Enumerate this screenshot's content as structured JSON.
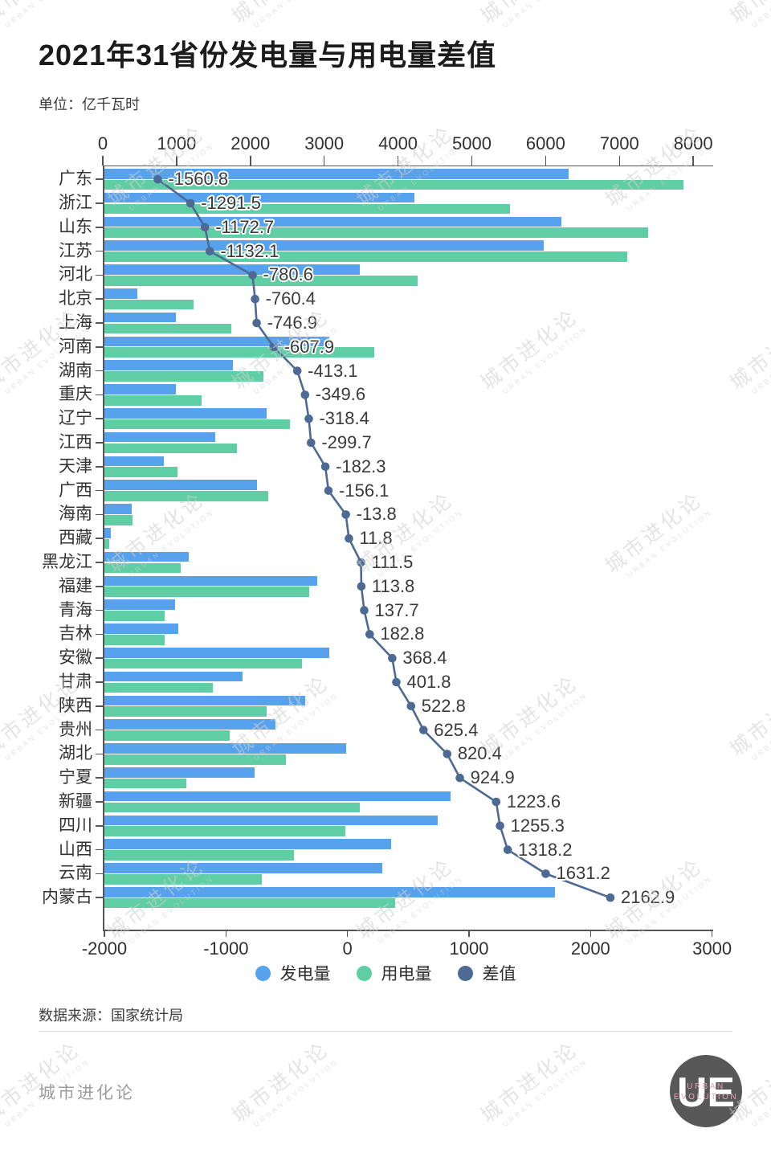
{
  "header": {
    "title": "2021年31省份发电量与用电量差值",
    "subtitle": "单位：亿千瓦时"
  },
  "watermark": {
    "line1": "城市进化论",
    "line2": "URBAN EVOLUTION"
  },
  "chart_data": {
    "type": "bar",
    "orientation": "horizontal",
    "title": "2021年31省份发电量与用电量差值",
    "unit": "亿千瓦时",
    "top_axis": {
      "min": 0,
      "max": 8000,
      "step": 1000,
      "tick_labels": [
        "0",
        "1000",
        "2000",
        "3000",
        "4000",
        "5000",
        "6000",
        "7000",
        "8000"
      ]
    },
    "bottom_axis": {
      "min": -2000,
      "max": 3000,
      "step": 1000,
      "tick_labels": [
        "-2000",
        "-1000",
        "0",
        "1000",
        "2000",
        "3000"
      ]
    },
    "series": [
      {
        "name": "发电量",
        "type": "bar",
        "color": "#56A2EC"
      },
      {
        "name": "用电量",
        "type": "bar",
        "color": "#5FCEA4"
      },
      {
        "name": "差值",
        "type": "line",
        "color": "#4D6A94"
      }
    ],
    "categories": [
      "广东",
      "浙江",
      "山东",
      "江苏",
      "河北",
      "北京",
      "上海",
      "河南",
      "湖南",
      "重庆",
      "辽宁",
      "江西",
      "天津",
      "广西",
      "海南",
      "西藏",
      "黑龙江",
      "福建",
      "青海",
      "吉林",
      "安徽",
      "甘肃",
      "陕西",
      "贵州",
      "湖北",
      "宁夏",
      "新疆",
      "四川",
      "山西",
      "云南",
      "内蒙古"
    ],
    "generation": [
      6306.0,
      4222.5,
      6211.1,
      5969.1,
      3483.2,
      472.1,
      992.1,
      3065.0,
      1764.4,
      990.2,
      2221.1,
      1520.7,
      825.7,
      2086.2,
      390.2,
      103.9,
      1162.6,
      2909.1,
      979.5,
      1017.9,
      3064.3,
      1896.0,
      2744.9,
      2340.0,
      3300.0,
      2060.0,
      4710.0,
      4541.0,
      3909.3,
      3784.9,
      6121.3
    ],
    "consumption": [
      7866.8,
      5514.0,
      7383.8,
      7101.2,
      4263.8,
      1232.5,
      1739.0,
      3672.9,
      2177.5,
      1339.8,
      2539.5,
      1820.4,
      1008.0,
      2242.3,
      404.0,
      92.1,
      1051.1,
      2795.3,
      841.8,
      835.1,
      2695.9,
      1494.2,
      2222.1,
      1714.6,
      2479.6,
      1135.1,
      3486.4,
      3285.7,
      2591.1,
      2153.7,
      3958.4
    ],
    "diff": [
      -1560.8,
      -1291.5,
      -1172.7,
      -1132.1,
      -780.6,
      -760.4,
      -746.9,
      -607.9,
      -413.1,
      -349.6,
      -318.4,
      -299.7,
      -182.3,
      -156.1,
      -13.8,
      11.8,
      111.5,
      113.8,
      137.7,
      182.8,
      368.4,
      401.8,
      522.8,
      625.4,
      820.4,
      924.9,
      1223.6,
      1255.3,
      1318.2,
      1631.2,
      2162.9
    ],
    "diff_labels": [
      "-1560.8",
      "-1291.5",
      "-1172.7",
      "-1132.1",
      "-780.6",
      "-760.4",
      "-746.9",
      "-607.9",
      "-413.1",
      "-349.6",
      "-318.4",
      "-299.7",
      "-182.3",
      "-156.1",
      "-13.8",
      "11.8",
      "111.5",
      "113.8",
      "137.7",
      "182.8",
      "368.4",
      "401.8",
      "522.8",
      "625.4",
      "820.4",
      "924.9",
      "1223.6",
      "1255.3",
      "1318.2",
      "1631.2",
      "2162.9"
    ]
  },
  "source": {
    "text": "数据来源：国家统计局"
  },
  "footer": {
    "brand": "城市进化论",
    "logo": {
      "initials": "UE",
      "line1": "URBAN",
      "line2": "EVOLUTION",
      "circle_color": "#585858",
      "text_color": "#eaa2b6"
    }
  }
}
